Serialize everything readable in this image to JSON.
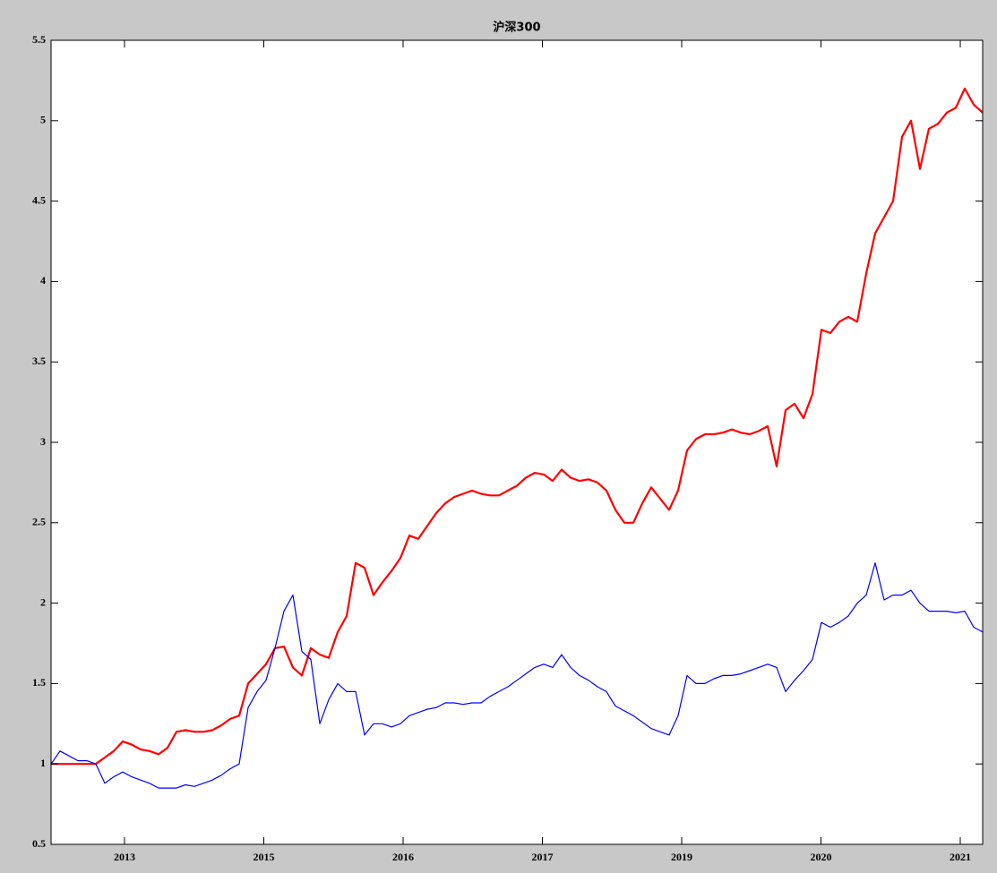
{
  "chart_data": {
    "type": "line",
    "title": "沪深300",
    "x": [
      0,
      20,
      40,
      60,
      80,
      100,
      120,
      140,
      160,
      180,
      200,
      220,
      240,
      260,
      280,
      300,
      320,
      340,
      360,
      380,
      400,
      420,
      440,
      460,
      480,
      500,
      520,
      540,
      560,
      580,
      600,
      620,
      640,
      660,
      680,
      700,
      720,
      740,
      760,
      780,
      800,
      820,
      840,
      860,
      880,
      900,
      920,
      940,
      960,
      980,
      1000,
      1020,
      1040,
      1060,
      1080,
      1100,
      1120,
      1140,
      1160,
      1180,
      1200,
      1220,
      1240,
      1260,
      1280,
      1300,
      1320,
      1340,
      1360,
      1380,
      1400,
      1420,
      1440,
      1460,
      1480,
      1500,
      1520,
      1540,
      1560,
      1580,
      1600,
      1620,
      1640,
      1660,
      1680,
      1700,
      1720,
      1740,
      1760,
      1780,
      1800,
      1820,
      1840,
      1860,
      1880,
      1900,
      1920,
      1940,
      1960,
      1980,
      2000,
      2020,
      2040,
      2060,
      2080
    ],
    "series": [
      {
        "color": "#ff0000",
        "width": 2.2,
        "values": [
          1.0,
          1.0,
          1.0,
          1.0,
          1.0,
          1.0,
          1.04,
          1.08,
          1.14,
          1.12,
          1.09,
          1.08,
          1.06,
          1.1,
          1.2,
          1.21,
          1.2,
          1.2,
          1.21,
          1.24,
          1.28,
          1.3,
          1.5,
          1.56,
          1.62,
          1.72,
          1.73,
          1.6,
          1.55,
          1.72,
          1.68,
          1.66,
          1.82,
          1.92,
          2.25,
          2.22,
          2.05,
          2.13,
          2.2,
          2.28,
          2.42,
          2.4,
          2.48,
          2.56,
          2.62,
          2.66,
          2.68,
          2.7,
          2.68,
          2.67,
          2.67,
          2.7,
          2.73,
          2.78,
          2.81,
          2.8,
          2.76,
          2.83,
          2.78,
          2.76,
          2.77,
          2.75,
          2.7,
          2.58,
          2.5,
          2.5,
          2.62,
          2.72,
          2.65,
          2.58,
          2.7,
          2.95,
          3.02,
          3.05,
          3.05,
          3.06,
          3.08,
          3.06,
          3.05,
          3.07,
          3.1,
          2.85,
          3.2,
          3.24,
          3.15,
          3.3,
          3.7,
          3.68,
          3.75,
          3.78,
          3.75,
          4.05,
          4.3,
          4.4,
          4.5,
          4.9,
          5.0,
          4.7,
          4.95,
          4.98,
          5.05,
          5.08,
          5.2,
          5.1,
          5.05
        ]
      },
      {
        "color": "#0000ff",
        "width": 1.2,
        "values": [
          1.0,
          1.08,
          1.05,
          1.02,
          1.02,
          1.0,
          0.88,
          0.92,
          0.95,
          0.92,
          0.9,
          0.88,
          0.85,
          0.85,
          0.85,
          0.87,
          0.86,
          0.88,
          0.9,
          0.93,
          0.97,
          1.0,
          1.35,
          1.45,
          1.52,
          1.72,
          1.95,
          2.05,
          1.7,
          1.65,
          1.25,
          1.4,
          1.5,
          1.45,
          1.45,
          1.18,
          1.25,
          1.25,
          1.23,
          1.25,
          1.3,
          1.32,
          1.34,
          1.35,
          1.38,
          1.38,
          1.37,
          1.38,
          1.38,
          1.42,
          1.45,
          1.48,
          1.52,
          1.56,
          1.6,
          1.62,
          1.6,
          1.68,
          1.6,
          1.55,
          1.52,
          1.48,
          1.45,
          1.36,
          1.33,
          1.3,
          1.26,
          1.22,
          1.2,
          1.18,
          1.3,
          1.55,
          1.5,
          1.5,
          1.53,
          1.55,
          1.55,
          1.56,
          1.58,
          1.6,
          1.62,
          1.6,
          1.45,
          1.52,
          1.58,
          1.65,
          1.88,
          1.85,
          1.88,
          1.92,
          2.0,
          2.05,
          2.25,
          2.02,
          2.05,
          2.05,
          2.08,
          2.0,
          1.95,
          1.95,
          1.95,
          1.94,
          1.95,
          1.85,
          1.82
        ]
      }
    ],
    "xlim": [
      0,
      2080
    ],
    "xticks": [
      {
        "value": 164,
        "label": "2013"
      },
      {
        "value": 475,
        "label": "2015"
      },
      {
        "value": 786,
        "label": "2016"
      },
      {
        "value": 1097,
        "label": "2017"
      },
      {
        "value": 1408,
        "label": "2019"
      },
      {
        "value": 1719,
        "label": "2020"
      },
      {
        "value": 2030,
        "label": "2021"
      }
    ],
    "ylim": [
      0.5,
      5.5
    ],
    "yticks": [
      0.5,
      1,
      1.5,
      2,
      2.5,
      3,
      3.5,
      4,
      4.5,
      5,
      5.5
    ]
  }
}
